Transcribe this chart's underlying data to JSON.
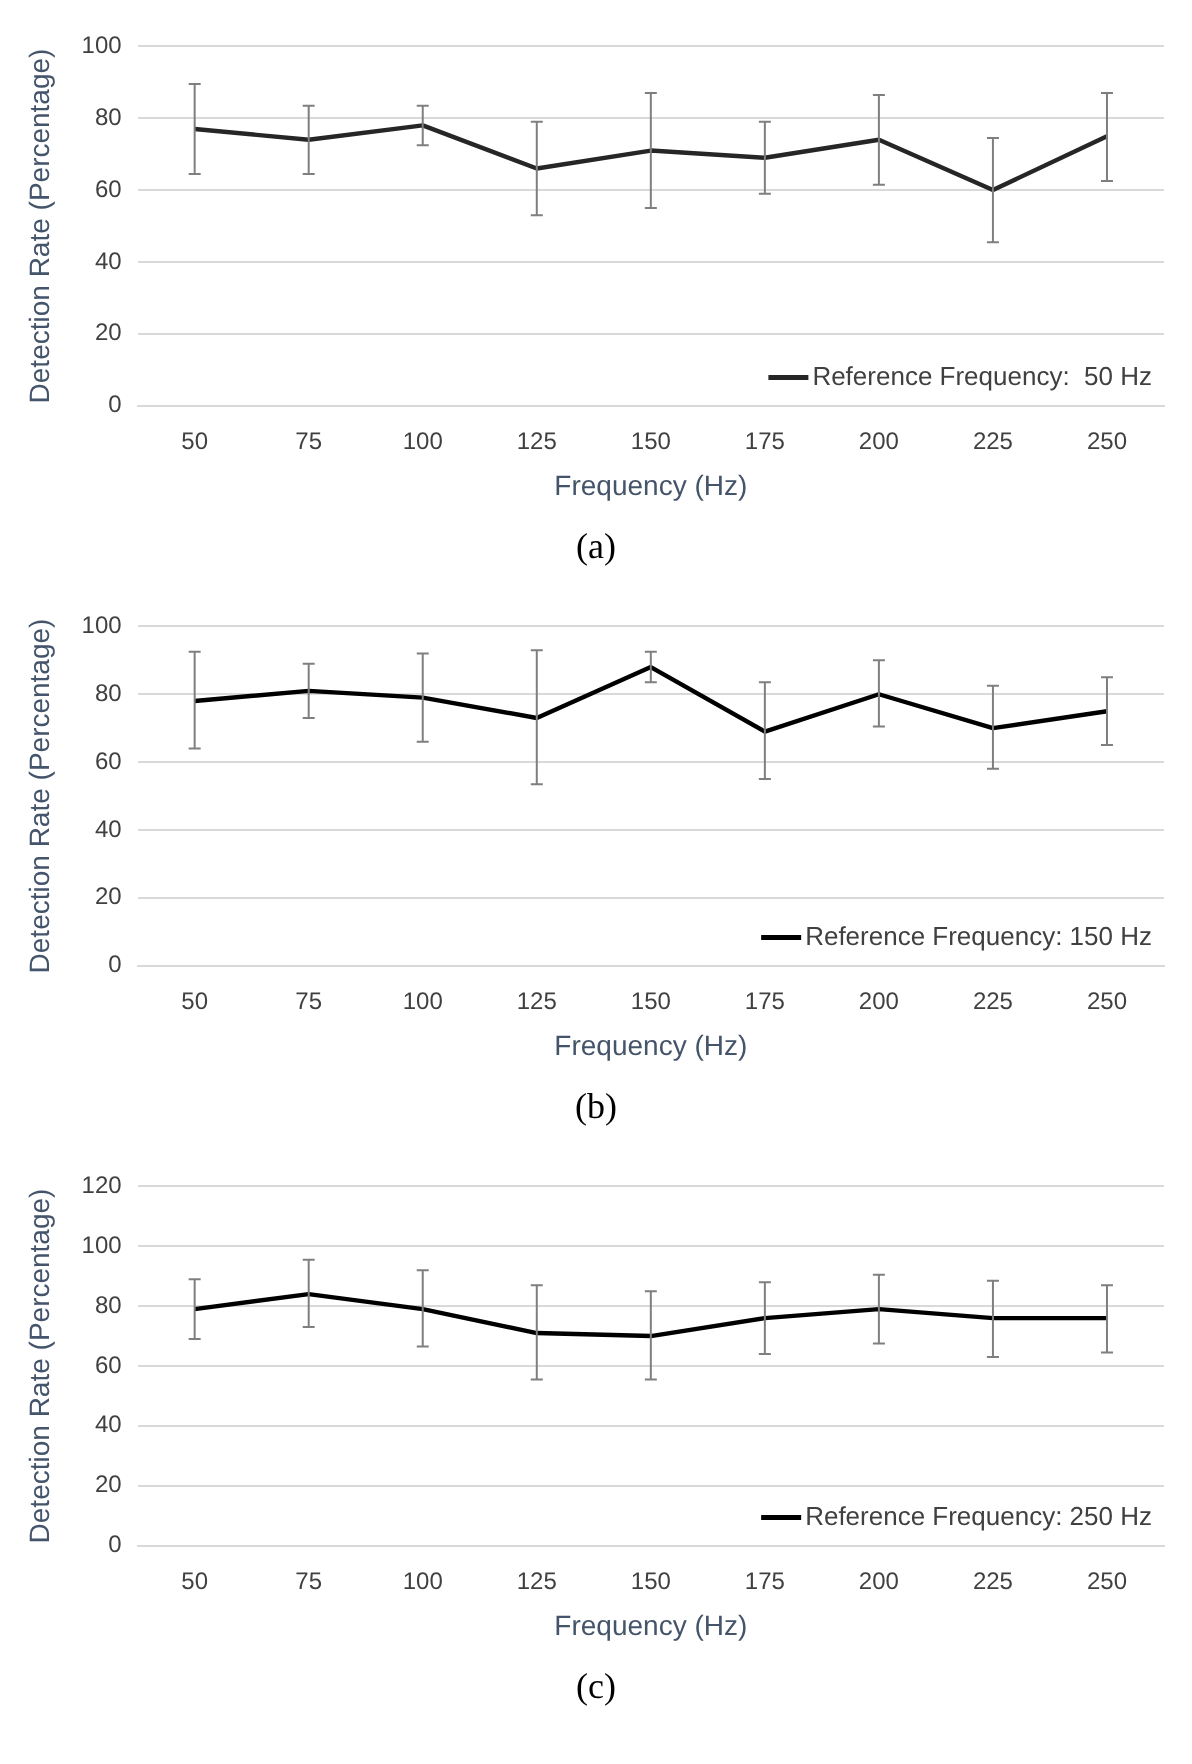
{
  "chart_data": [
    {
      "type": "line",
      "xlabel": "Frequency (Hz)",
      "ylabel": "Detection Rate (Percentage)",
      "categories": [
        "50",
        "75",
        "100",
        "125",
        "150",
        "175",
        "200",
        "225",
        "250"
      ],
      "ylim": [
        0,
        100
      ],
      "yticks": [
        0,
        20,
        40,
        60,
        80,
        100
      ],
      "grid": "y",
      "legend": "bottom right",
      "marker": "none",
      "line_style": "solid",
      "annotations": [
        "(a)"
      ],
      "series": [
        {
          "name": "Reference Frequency:  50 Hz",
          "color": "#262626",
          "values": [
            77,
            74,
            78,
            66,
            71,
            69,
            74,
            60,
            75
          ],
          "errors": [
            [
              64.5,
              89.5
            ],
            [
              64.5,
              83.5
            ],
            [
              72.5,
              83.5
            ],
            [
              53,
              79
            ],
            [
              55,
              87
            ],
            [
              59,
              79
            ],
            [
              61.5,
              86.5
            ],
            [
              45.5,
              74.5
            ],
            [
              62.5,
              87
            ]
          ]
        }
      ]
    },
    {
      "type": "line",
      "xlabel": "Frequency (Hz)",
      "ylabel": "Detection Rate (Percentage)",
      "categories": [
        "50",
        "75",
        "100",
        "125",
        "150",
        "175",
        "200",
        "225",
        "250"
      ],
      "ylim": [
        0,
        100
      ],
      "yticks": [
        0,
        20,
        40,
        60,
        80,
        100
      ],
      "grid": "y",
      "legend": "bottom right",
      "marker": "none",
      "line_style": "solid",
      "annotations": [
        "(b)"
      ],
      "series": [
        {
          "name": "Reference Frequency: 150 Hz",
          "color": "#000000",
          "values": [
            78,
            81,
            79,
            73,
            88,
            69,
            80,
            70,
            75
          ],
          "errors": [
            [
              64,
              92.5
            ],
            [
              73,
              89
            ],
            [
              66,
              92
            ],
            [
              53.5,
              93
            ],
            [
              83.5,
              92.5
            ],
            [
              55,
              83.5
            ],
            [
              70.5,
              90
            ],
            [
              58,
              82.5
            ],
            [
              65,
              85
            ]
          ]
        }
      ]
    },
    {
      "type": "line",
      "xlabel": "Frequency (Hz)",
      "ylabel": "Detection Rate (Percentage)",
      "categories": [
        "50",
        "75",
        "100",
        "125",
        "150",
        "175",
        "200",
        "225",
        "250"
      ],
      "ylim": [
        0,
        120
      ],
      "yticks": [
        0,
        20,
        40,
        60,
        80,
        100,
        120
      ],
      "grid": "y",
      "legend": "bottom right",
      "marker": "none",
      "line_style": "solid",
      "annotations": [
        "(c)"
      ],
      "series": [
        {
          "name": "Reference Frequency: 250 Hz",
          "color": "#000000",
          "values": [
            79,
            84,
            79,
            71,
            70,
            76,
            79,
            76,
            76
          ],
          "errors": [
            [
              69,
              89
            ],
            [
              73,
              95.5
            ],
            [
              66.5,
              92
            ],
            [
              55.5,
              87
            ],
            [
              55.5,
              85
            ],
            [
              64,
              88
            ],
            [
              67.5,
              90.5
            ],
            [
              63,
              88.5
            ],
            [
              64.5,
              87
            ]
          ]
        }
      ]
    }
  ]
}
